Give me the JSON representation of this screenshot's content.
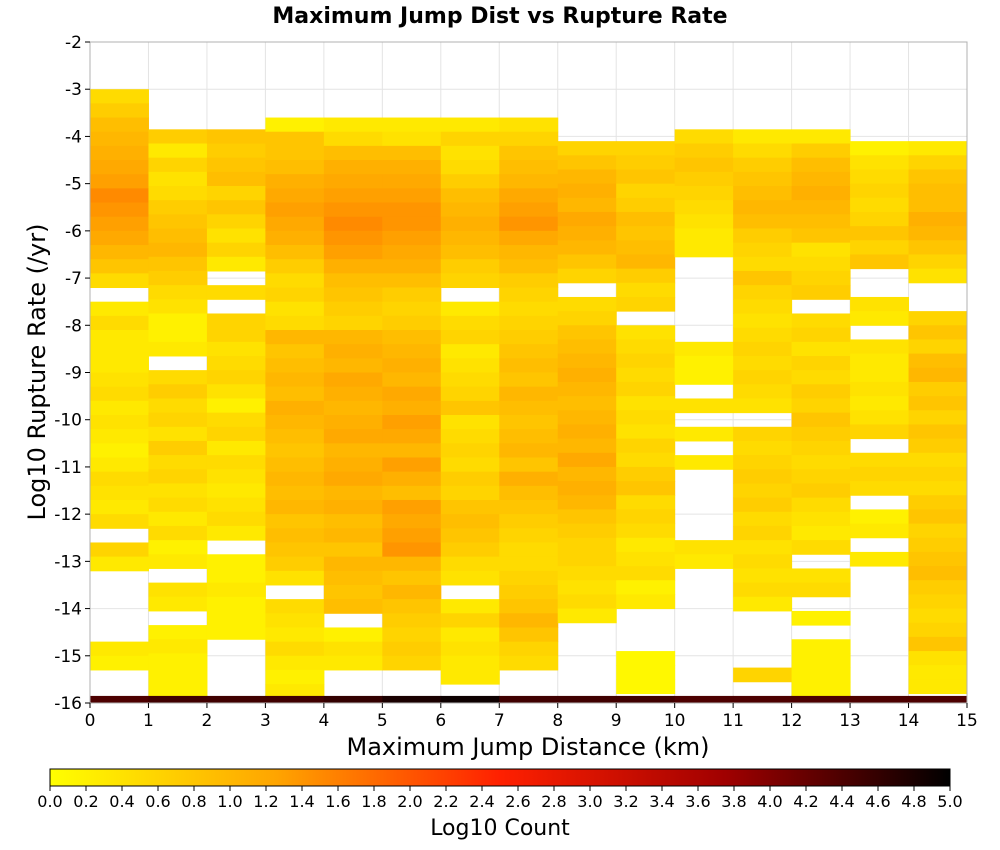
{
  "chart_data": {
    "type": "heatmap",
    "title": "Maximum Jump Dist vs Rupture Rate",
    "xlabel": "Maximum Jump Distance (km)",
    "ylabel": "Log10 Rupture Rate (/yr)",
    "xlim": [
      0,
      15
    ],
    "ylim": [
      -16,
      -2
    ],
    "x_ticks": [
      "0",
      "1",
      "2",
      "3",
      "4",
      "5",
      "6",
      "7",
      "8",
      "9",
      "10",
      "11",
      "12",
      "13",
      "14",
      "15"
    ],
    "y_ticks": [
      "-2",
      "-3",
      "-4",
      "-5",
      "-6",
      "-7",
      "-8",
      "-9",
      "-10",
      "-11",
      "-12",
      "-13",
      "-14",
      "-15",
      "-16"
    ],
    "bin_y_width": 0.3,
    "bottom_row": {
      "y_start": -16,
      "values": [
        4.4,
        4.5,
        4.5,
        4.5,
        4.6,
        4.8,
        4.9,
        4.5,
        4.5,
        4.5,
        4.4,
        4.4,
        4.4,
        4.4,
        4.4
      ]
    },
    "colorbar": {
      "label": "Log10 Count",
      "range": [
        0,
        5
      ],
      "ticks": [
        "0.0",
        "0.2",
        "0.4",
        "0.6",
        "0.8",
        "1.0",
        "1.2",
        "1.4",
        "1.6",
        "1.8",
        "2.0",
        "2.2",
        "2.4",
        "2.6",
        "2.8",
        "3.0",
        "3.2",
        "3.4",
        "3.6",
        "3.8",
        "4.0",
        "4.2",
        "4.4",
        "4.6",
        "4.8",
        "5.0"
      ],
      "gradient_colors": [
        "#ffff00",
        "#ffa500",
        "#ff2000",
        "#a00000",
        "#000000"
      ]
    },
    "columns": [
      {
        "x0": 0,
        "top": -3.0,
        "values": [
          0.5,
          0.7,
          0.9,
          1.0,
          1.1,
          1.2,
          1.3,
          1.5,
          1.4,
          1.3,
          1.2,
          1.0,
          0.8,
          0.5,
          null,
          0.3,
          0.5,
          0.3,
          0.3,
          0.3,
          0.4,
          0.5,
          0.3,
          0.4,
          0.3,
          0.2,
          0.3,
          0.5,
          0.4,
          0.3,
          0.5,
          null,
          0.6,
          0.3,
          null,
          null,
          null,
          null,
          null,
          0.3,
          0.2,
          null,
          null,
          0.7
        ]
      },
      {
        "x0": 1,
        "top": -3.85,
        "values": [
          0.7,
          0.3,
          0.6,
          0.4,
          0.5,
          0.7,
          0.8,
          0.9,
          1.0,
          0.8,
          0.7,
          0.5,
          0.4,
          0.2,
          0.2,
          0.3,
          null,
          0.5,
          0.7,
          0.5,
          0.6,
          0.4,
          0.7,
          0.5,
          0.6,
          0.4,
          0.5,
          0.3,
          0.5,
          0.2,
          0.3,
          null,
          0.4,
          0.3,
          null,
          0.2,
          0.3,
          0.2,
          0.2,
          0.2
        ]
      },
      {
        "x0": 2,
        "top": -3.85,
        "values": [
          0.8,
          0.7,
          0.8,
          0.9,
          0.6,
          0.8,
          0.6,
          0.4,
          0.6,
          0.3,
          null,
          0.5,
          null,
          0.6,
          0.6,
          0.4,
          0.5,
          0.6,
          0.4,
          0.2,
          0.5,
          0.6,
          0.3,
          0.5,
          0.4,
          0.3,
          0.4,
          0.5,
          0.3,
          null,
          0.2,
          0.2,
          0.3,
          0.2,
          0.2,
          0.2
        ]
      },
      {
        "x0": 3,
        "top": -3.6,
        "values": [
          0.2,
          0.8,
          0.8,
          0.9,
          1.1,
          1.2,
          1.3,
          1.2,
          1.1,
          0.9,
          0.7,
          0.5,
          0.6,
          0.4,
          0.5,
          1.0,
          0.8,
          0.9,
          1.0,
          0.9,
          1.1,
          1.0,
          0.9,
          0.8,
          0.9,
          1.0,
          0.9,
          1.0,
          0.8,
          0.9,
          0.8,
          0.7,
          0.4,
          null,
          0.5,
          0.4,
          0.3,
          0.5,
          0.3,
          0.2,
          0.3,
          0.9
        ]
      },
      {
        "x0": 4,
        "top": -3.6,
        "values": [
          0.3,
          0.5,
          0.9,
          1.1,
          1.2,
          1.3,
          1.4,
          1.5,
          1.4,
          1.3,
          1.1,
          0.9,
          0.8,
          0.7,
          0.6,
          1.0,
          1.1,
          1.0,
          1.2,
          1.1,
          1.0,
          1.1,
          1.2,
          1.0,
          1.1,
          1.2,
          1.0,
          1.1,
          0.9,
          1.0,
          0.8,
          1.0,
          0.9,
          0.8,
          0.9,
          null,
          0.2,
          0.4,
          0.3
        ]
      },
      {
        "x0": 5,
        "top": -3.6,
        "values": [
          0.3,
          0.4,
          0.9,
          1.1,
          1.2,
          1.3,
          1.4,
          1.4,
          1.3,
          1.2,
          1.1,
          0.9,
          0.7,
          0.6,
          0.7,
          0.9,
          1.0,
          1.1,
          1.0,
          1.2,
          1.1,
          1.3,
          1.2,
          1.0,
          1.3,
          1.1,
          0.9,
          1.3,
          1.2,
          1.3,
          1.4,
          1.0,
          0.8,
          1.0,
          0.8,
          0.7,
          0.6,
          0.7,
          0.6
        ]
      },
      {
        "x0": 6,
        "top": -3.6,
        "values": [
          0.3,
          0.6,
          0.4,
          0.5,
          0.7,
          0.9,
          1.0,
          1.1,
          1.0,
          0.9,
          0.7,
          0.6,
          null,
          0.3,
          0.5,
          0.6,
          0.3,
          0.4,
          0.5,
          0.6,
          0.8,
          0.4,
          0.5,
          0.6,
          0.5,
          0.7,
          0.6,
          0.8,
          0.9,
          0.8,
          0.7,
          0.5,
          0.4,
          null,
          0.3,
          0.6,
          0.3,
          0.4,
          0.3,
          0.3
        ]
      },
      {
        "x0": 7,
        "top": -3.6,
        "values": [
          0.4,
          0.6,
          0.8,
          0.9,
          1.0,
          1.2,
          1.3,
          1.4,
          1.2,
          1.0,
          0.9,
          0.7,
          0.6,
          0.5,
          0.6,
          0.7,
          0.8,
          0.9,
          0.8,
          1.0,
          0.9,
          0.8,
          0.9,
          1.0,
          0.8,
          1.1,
          0.9,
          0.8,
          0.7,
          0.6,
          0.5,
          0.5,
          0.6,
          0.7,
          0.8,
          1.0,
          0.8,
          0.6,
          0.5
        ]
      },
      {
        "x0": 8,
        "top": -4.1,
        "values": [
          0.6,
          0.8,
          1.0,
          1.1,
          1.0,
          1.2,
          1.1,
          1.0,
          0.8,
          0.6,
          null,
          0.5,
          0.6,
          0.8,
          0.9,
          1.0,
          1.1,
          1.0,
          0.9,
          1.0,
          1.1,
          1.0,
          1.2,
          1.0,
          1.1,
          1.0,
          0.8,
          0.7,
          0.6,
          0.6,
          0.5,
          0.4,
          0.5,
          0.3
        ]
      },
      {
        "x0": 9,
        "top": -4.1,
        "values": [
          0.6,
          0.7,
          0.8,
          0.6,
          0.7,
          0.9,
          0.8,
          0.9,
          1.0,
          0.7,
          0.5,
          0.6,
          null,
          0.4,
          0.5,
          0.6,
          0.5,
          0.6,
          0.4,
          0.5,
          0.4,
          0.6,
          0.5,
          0.7,
          0.8,
          0.5,
          0.6,
          0.5,
          0.3,
          0.4,
          0.5,
          0.2,
          0.3,
          null,
          null,
          null,
          0.1,
          0.1,
          0.1,
          0.1,
          0.1
        ]
      },
      {
        "x0": 10,
        "top": -3.85,
        "values": [
          0.5,
          0.7,
          0.8,
          0.7,
          0.6,
          0.5,
          0.4,
          0.3,
          0.3,
          null,
          null,
          null,
          null,
          null,
          null,
          0.3,
          0.2,
          0.2,
          null,
          0.4,
          null,
          0.3,
          null,
          0.3,
          null,
          null,
          null,
          null,
          null,
          0.4,
          0.3
        ]
      },
      {
        "x0": 11,
        "top": -3.85,
        "values": [
          0.3,
          0.5,
          0.7,
          0.8,
          0.9,
          1.0,
          0.9,
          0.7,
          0.6,
          0.5,
          0.8,
          0.6,
          0.5,
          0.4,
          0.5,
          0.6,
          0.5,
          0.6,
          0.5,
          0.4,
          null,
          0.6,
          0.5,
          0.6,
          0.7,
          0.6,
          0.7,
          0.5,
          0.6,
          0.4,
          0.5,
          0.4,
          0.5,
          0.3,
          null,
          null,
          null,
          null,
          0.6,
          null,
          0.3
        ]
      },
      {
        "x0": 12,
        "top": -3.85,
        "values": [
          0.3,
          0.7,
          0.9,
          1.0,
          1.1,
          1.0,
          0.9,
          0.8,
          0.4,
          0.5,
          0.6,
          0.7,
          null,
          0.5,
          0.6,
          0.4,
          0.6,
          0.5,
          0.7,
          0.6,
          0.8,
          0.7,
          0.6,
          0.5,
          0.6,
          0.7,
          0.5,
          0.4,
          0.3,
          0.5,
          null,
          0.4,
          0.5,
          null,
          0.2,
          null,
          0.2,
          0.2,
          0.2,
          0.2
        ]
      },
      {
        "x0": 13,
        "top": -4.1,
        "values": [
          0.2,
          0.4,
          0.5,
          0.6,
          0.5,
          0.6,
          0.8,
          0.6,
          0.8,
          null,
          null,
          0.4,
          0.3,
          null,
          0.4,
          0.3,
          0.3,
          0.4,
          0.3,
          0.4,
          0.6,
          null,
          0.5,
          0.6,
          0.5,
          null,
          0.2,
          0.3,
          null,
          0.3
        ]
      },
      {
        "x0": 14,
        "top": -4.1,
        "values": [
          0.3,
          0.6,
          0.8,
          0.9,
          0.9,
          1.1,
          1.0,
          0.8,
          0.6,
          0.4,
          null,
          null,
          0.6,
          0.8,
          0.6,
          0.9,
          1.0,
          0.7,
          0.8,
          0.6,
          0.8,
          0.7,
          0.5,
          0.6,
          0.5,
          0.7,
          0.8,
          0.6,
          0.7,
          0.8,
          0.9,
          0.7,
          0.6,
          0.5,
          0.6,
          0.8,
          0.4,
          0.3,
          0.3,
          0.5
        ]
      }
    ]
  }
}
